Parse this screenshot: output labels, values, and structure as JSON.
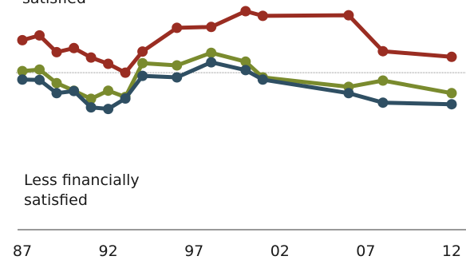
{
  "chart_data": {
    "type": "line",
    "top_label": "satisfied",
    "bottom_label_line1": "Less financially",
    "bottom_label_line2": "satisfied",
    "x_tick_labels": [
      "87",
      "92",
      "97",
      "02",
      "07",
      "12"
    ],
    "x_ticks": [
      1987,
      1992,
      1997,
      2002,
      2007,
      2012
    ],
    "xlim": [
      1987,
      2012
    ],
    "ylim": [
      -2.5,
      2.0
    ],
    "reference_line": 0,
    "series": [
      {
        "color": "#9a2d22",
        "x": [
          1987,
          1988,
          1989,
          1990,
          1991,
          1992,
          1993,
          1994,
          1996,
          1998,
          2000,
          2001,
          2006,
          2008,
          2012
        ],
        "values": [
          1.03,
          1.18,
          0.65,
          0.78,
          0.48,
          0.28,
          0.0,
          0.67,
          1.42,
          1.45,
          1.95,
          1.8,
          1.82,
          0.68,
          0.5
        ]
      },
      {
        "color": "#7a8b2e",
        "x": [
          1987,
          1988,
          1989,
          1990,
          1991,
          1992,
          1993,
          1994,
          1996,
          1998,
          2000,
          2001,
          2006,
          2008,
          2012
        ],
        "values": [
          0.05,
          0.1,
          -0.33,
          -0.57,
          -0.83,
          -0.57,
          -0.77,
          0.3,
          0.23,
          0.63,
          0.35,
          -0.15,
          -0.45,
          -0.25,
          -0.65
        ]
      },
      {
        "color": "#2f4f63",
        "x": [
          1987,
          1988,
          1989,
          1990,
          1991,
          1992,
          1993,
          1994,
          1996,
          1998,
          2000,
          2001,
          2006,
          2008,
          2012
        ],
        "values": [
          -0.22,
          -0.23,
          -0.65,
          -0.58,
          -1.1,
          -1.15,
          -0.82,
          -0.1,
          -0.15,
          0.33,
          0.08,
          -0.22,
          -0.65,
          -0.95,
          -1.0
        ]
      }
    ]
  }
}
